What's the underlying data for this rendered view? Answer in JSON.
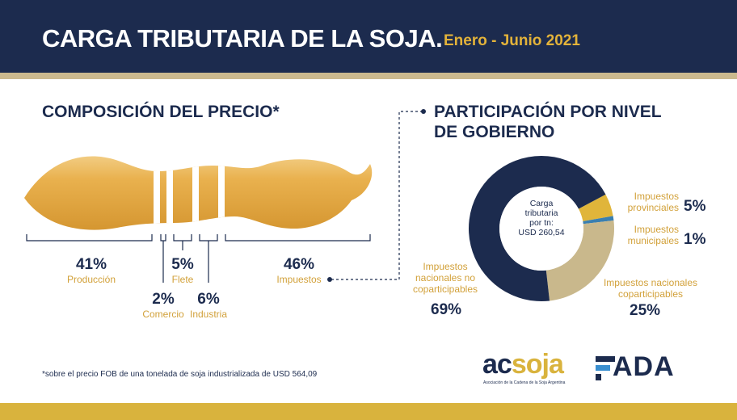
{
  "header": {
    "title": "CARGA TRIBUTARIA DE LA SOJA.",
    "subtitle": "Enero - Junio 2021"
  },
  "left_section": {
    "title": "COMPOSICIÓN DEL PRECIO*",
    "segments": [
      {
        "pct": "41%",
        "label": "Producción"
      },
      {
        "pct": "2%",
        "label": "Comercio"
      },
      {
        "pct": "5%",
        "label": "Flete"
      },
      {
        "pct": "6%",
        "label": "Industria"
      },
      {
        "pct": "46%",
        "label": "Impuestos"
      }
    ]
  },
  "right_section": {
    "title_line1": "PARTICIPACIÓN POR NIVEL",
    "title_line2": "DE GOBIERNO",
    "center_line1": "Carga",
    "center_line2": "tributaria",
    "center_line3": "por tn:",
    "center_line4": "USD 260,54",
    "slices": [
      {
        "label_line1": "Impuestos",
        "label_line2": "provinciales",
        "pct": "5%",
        "value": 5,
        "color": "#e0b53a"
      },
      {
        "label_line1": "Impuestos",
        "label_line2": "municipales",
        "pct": "1%",
        "value": 1,
        "color": "#3a7fb0"
      },
      {
        "label_line1": "Impuestos nacionales",
        "label_line2": "coparticipables",
        "pct": "25%",
        "value": 25,
        "color": "#c9b88c"
      },
      {
        "label_line1": "Impuestos",
        "label_line2": "nacionales no",
        "label_line3": "coparticipables",
        "pct": "69%",
        "value": 69,
        "color": "#1c2b4e"
      }
    ]
  },
  "footnote": "*sobre el precio FOB de una tonelada de soja industrializada de USD 564,09",
  "logos": {
    "acsoja_a": "ac",
    "acsoja_b": "soja",
    "acsoja_tagline": "Asociación de la Cadena de la Soja Argentina",
    "fada": "ADA"
  },
  "colors": {
    "navy": "#1c2b4e",
    "gold": "#d9b33d",
    "beige": "#c9b88c",
    "blue": "#3a7fb0"
  }
}
